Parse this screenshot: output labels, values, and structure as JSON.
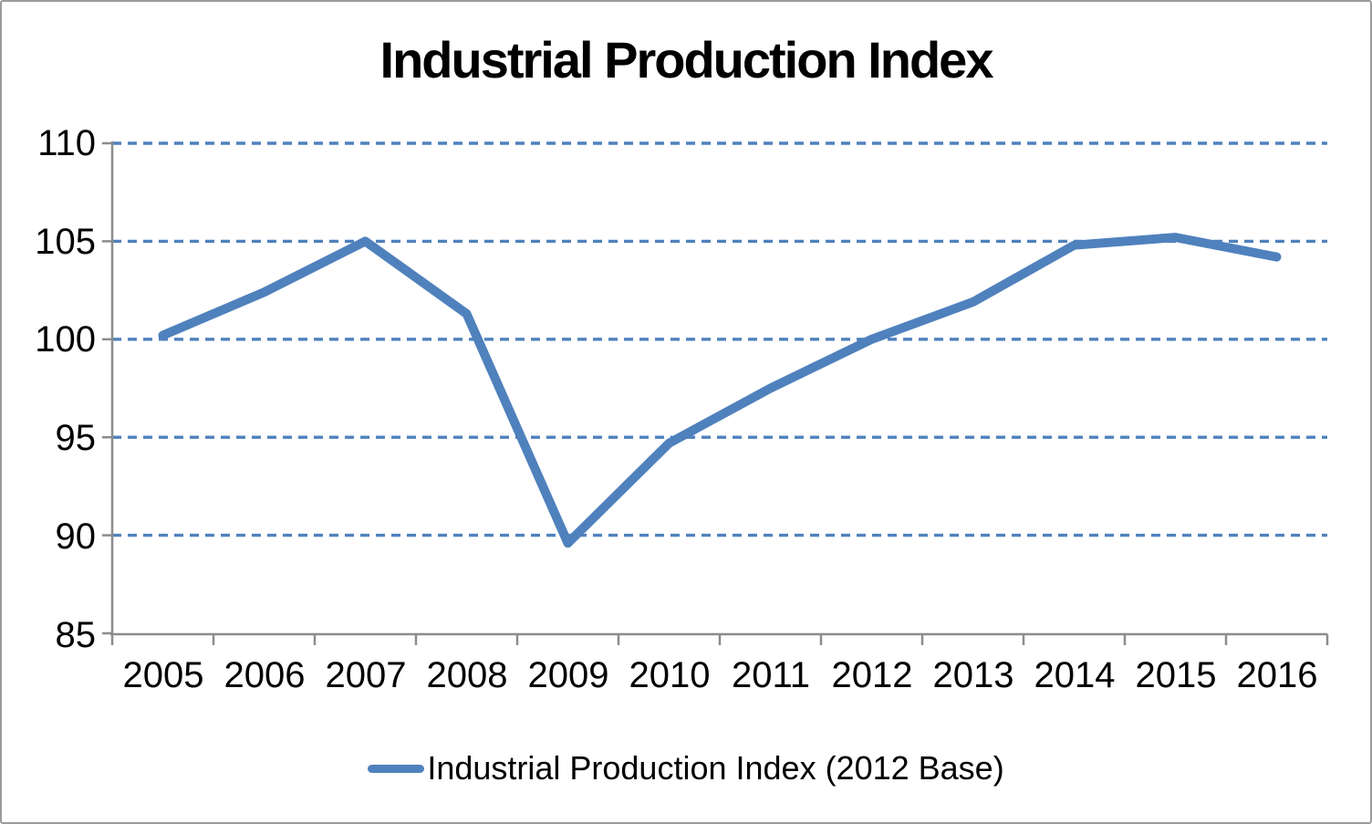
{
  "chart_data": {
    "type": "line",
    "title": "Industrial Production Index",
    "categories": [
      "2005",
      "2006",
      "2007",
      "2008",
      "2009",
      "2010",
      "2011",
      "2012",
      "2013",
      "2014",
      "2015",
      "2016"
    ],
    "series": [
      {
        "name": "Industrial Production Index (2012 Base)",
        "values": [
          100.2,
          102.4,
          105.0,
          101.3,
          89.6,
          94.7,
          97.5,
          100.0,
          101.9,
          104.8,
          105.2,
          104.2
        ]
      }
    ],
    "xlabel": "",
    "ylabel": "",
    "ylim": [
      85,
      110
    ],
    "y_ticks": [
      110,
      105,
      100,
      95,
      90,
      85
    ],
    "grid": "horizontal-dashed",
    "legend_position": "bottom",
    "colors": {
      "series": "#4F81BD",
      "gridline": "#4F81BD",
      "axis": "#8C8C8C",
      "text": "#000000",
      "background": "#FFFFFF",
      "border": "#9A9A9A"
    }
  }
}
